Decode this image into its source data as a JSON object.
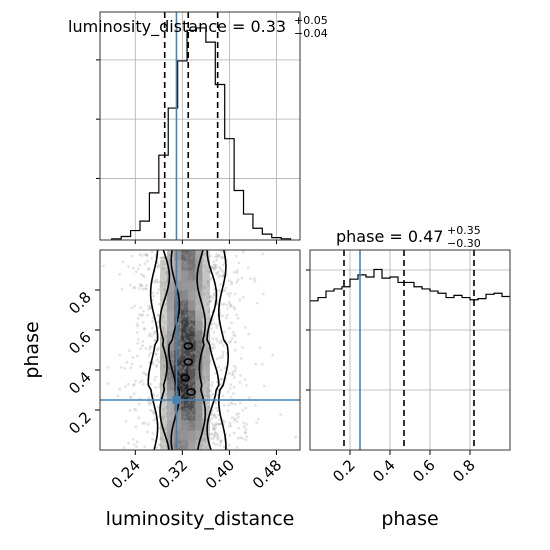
{
  "chart_data": {
    "type": "corner",
    "parameters": [
      "luminosity_distance",
      "phase"
    ],
    "axis_labels": {
      "x_bottom_left": "luminosity_distance",
      "x_bottom_right": "phase",
      "y_left": "phase"
    },
    "titles": [
      {
        "parameter": "luminosity_distance",
        "main": "luminosity_distance = 0.33",
        "plus": "+0.05",
        "minus": "−0.04"
      },
      {
        "parameter": "phase",
        "main": "phase = 0.47",
        "plus": "+0.35",
        "minus": "−0.30"
      }
    ],
    "truth": {
      "luminosity_distance": 0.31,
      "phase": 0.25
    },
    "quantiles": {
      "luminosity_distance": [
        0.29,
        0.33,
        0.38
      ],
      "phase": [
        0.17,
        0.47,
        0.82
      ]
    },
    "ranges": {
      "luminosity_distance": [
        0.18,
        0.52
      ],
      "phase": [
        0.0,
        1.0
      ]
    },
    "ticks": {
      "luminosity_distance": {
        "values": [
          0.24,
          0.32,
          0.4,
          0.48
        ],
        "labels": [
          "0.24",
          "0.32",
          "0.40",
          "0.48"
        ]
      },
      "phase": {
        "values": [
          0.2,
          0.4,
          0.6,
          0.8
        ],
        "labels": [
          "0.2",
          "0.4",
          "0.6",
          "0.8"
        ]
      }
    },
    "marginal_luminosity_distance": {
      "bin_width": 0.016,
      "bin_edges_start": 0.2,
      "counts": [
        1,
        3,
        8,
        16,
        40,
        72,
        112,
        152,
        178,
        180,
        168,
        132,
        86,
        42,
        22,
        10,
        5,
        2,
        1
      ]
    },
    "marginal_phase": {
      "bin_width": 0.04,
      "bin_edges_start": 0.0,
      "counts": [
        138,
        141,
        147,
        149,
        151,
        158,
        162,
        160,
        167,
        159,
        160,
        155,
        155,
        151,
        149,
        147,
        145,
        141,
        143,
        141,
        139,
        140,
        144,
        145,
        142
      ]
    },
    "grid": true,
    "tick_label_rotation_deg": 45
  }
}
